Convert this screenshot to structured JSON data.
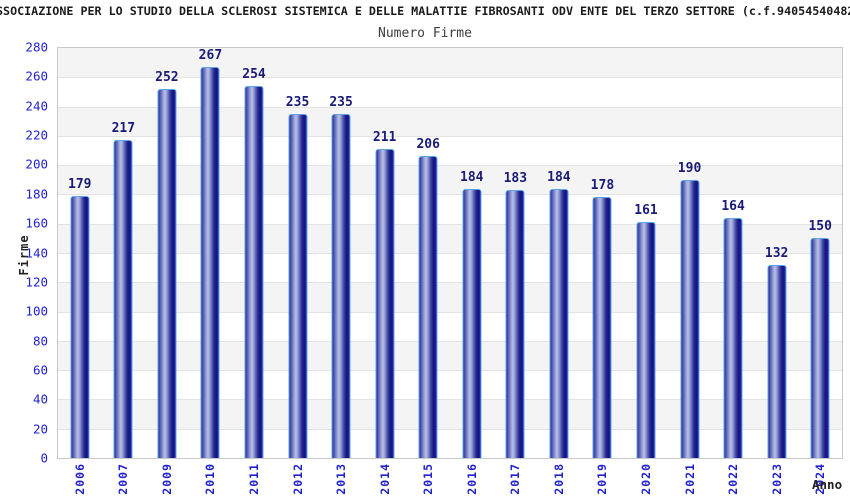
{
  "header": {
    "title": "SSOCIAZIONE PER LO STUDIO DELLA SCLEROSI SISTEMICA E DELLE MALATTIE FIBROSANTI ODV ENTE DEL TERZO SETTORE (c.f.94054540482",
    "subtitle": "Numero Firme"
  },
  "chart_data": {
    "type": "bar",
    "title": "Numero Firme",
    "xlabel": "Anno",
    "ylabel": "Firme",
    "categories": [
      "2006",
      "2007",
      "2009",
      "2010",
      "2011",
      "2012",
      "2013",
      "2014",
      "2015",
      "2016",
      "2017",
      "2018",
      "2019",
      "2020",
      "2021",
      "2022",
      "2023",
      "2024"
    ],
    "values": [
      179,
      217,
      252,
      267,
      254,
      235,
      235,
      211,
      206,
      184,
      183,
      184,
      178,
      161,
      190,
      164,
      132,
      150
    ],
    "ylim": [
      0,
      280
    ],
    "ytick_step": 20,
    "grid": "horizontal-bands-alternating",
    "legend": "none",
    "colors": {
      "axis_text": "#2222cc",
      "value_text": "#1a1a78",
      "bar_dark": "#23238c",
      "bar_light": "#b8c0ea",
      "bar_outline": "#58a6e8",
      "band_gray": "#f4f4f4",
      "grid_line": "#e3e3e3"
    }
  }
}
